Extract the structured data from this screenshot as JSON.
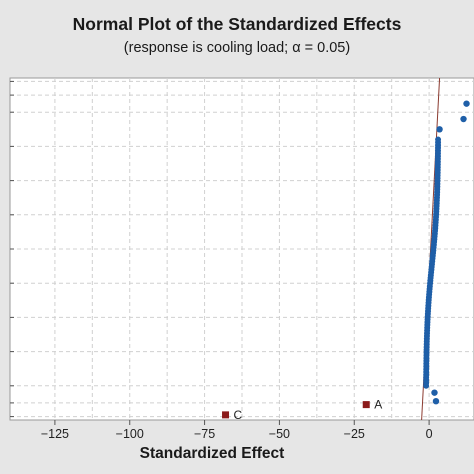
{
  "chart_data": {
    "type": "scatter",
    "title": "Normal Plot of the Standardized Effects",
    "subtitle": "(response is cooling load; α = 0.05)",
    "xlabel": "Standardized Effect",
    "ylabel": "",
    "xlim": [
      -140,
      15
    ],
    "ylim": [
      0,
      1
    ],
    "xticks": [
      -125,
      -100,
      -75,
      -50,
      -25,
      0
    ],
    "xtick_labels": [
      "−125",
      "−100",
      "−75",
      "−50",
      "−25",
      "0"
    ],
    "grid": true,
    "reference_line": {
      "x_at_bottom": -2.5,
      "x_at_top": 3.5,
      "color": "#8b3a2f"
    },
    "series": [
      {
        "marker": "circle",
        "color": "#1f5fa8",
        "points": [
          {
            "x": 12.5,
            "y": 0.925
          },
          {
            "x": 11.5,
            "y": 0.88
          },
          {
            "x": 3.5,
            "y": 0.85
          },
          {
            "x": 2.3,
            "y": 0.055
          },
          {
            "x": 1.8,
            "y": 0.08
          }
        ],
        "cluster": {
          "x_min": -1.0,
          "x_max": 3.0,
          "y_min": 0.1,
          "y_max": 0.82,
          "count": 90
        }
      },
      {
        "marker": "square",
        "color": "#8b1a1a",
        "points": [
          {
            "x": -21,
            "y": 0.045,
            "label": "A"
          },
          {
            "x": -68,
            "y": 0.015,
            "label": "C"
          }
        ]
      }
    ]
  },
  "colors": {
    "background": "#e6e6e6",
    "plot_bg": "#ffffff",
    "grid": "#d0d0d0",
    "effect_point": "#1f5fa8",
    "significant_point": "#8b1a1a",
    "ref_line": "#8b3a2f"
  }
}
